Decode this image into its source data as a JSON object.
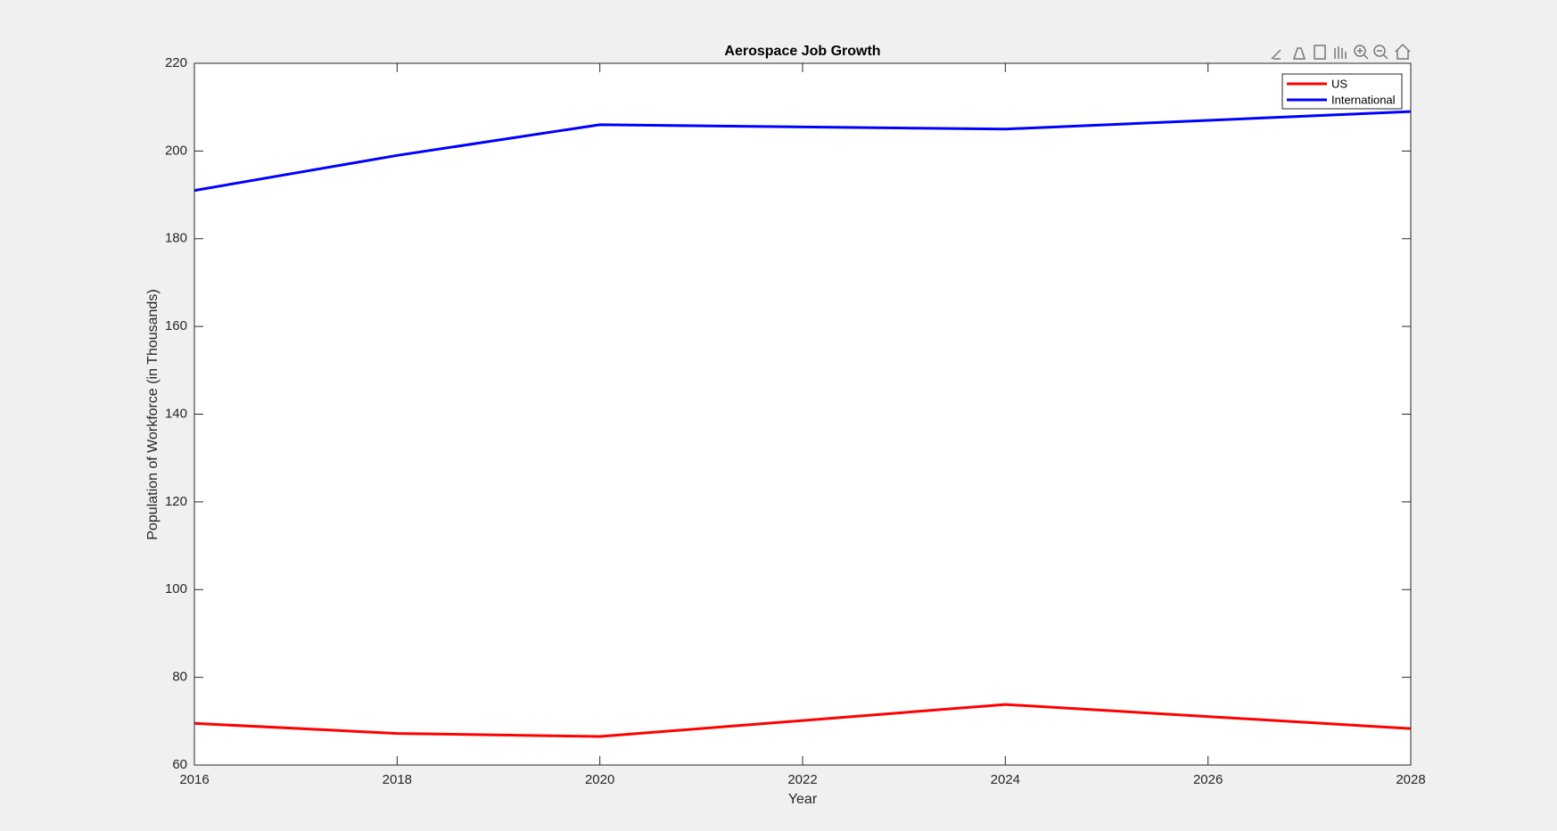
{
  "chart_data": {
    "type": "line",
    "title": "Aerospace Job Growth",
    "x_label": "Year",
    "y_label": "Population of Workforce (in Thousands)",
    "x": [
      2016,
      2018,
      2020,
      2024,
      2028
    ],
    "series": [
      {
        "name": "US",
        "color": "#ff0000",
        "values": [
          69.5,
          67.2,
          66.5,
          73.8,
          68.3
        ]
      },
      {
        "name": "International",
        "color": "#0000ff",
        "values": [
          191,
          199,
          206,
          205,
          209
        ]
      }
    ],
    "xlim": [
      2016,
      2028
    ],
    "xticks": [
      2016,
      2018,
      2020,
      2022,
      2024,
      2026,
      2028
    ],
    "ylim": [
      60,
      220
    ],
    "yticks": [
      60,
      80,
      100,
      120,
      140,
      160,
      180,
      200,
      220
    ],
    "grid": false,
    "legend": "northeast"
  }
}
